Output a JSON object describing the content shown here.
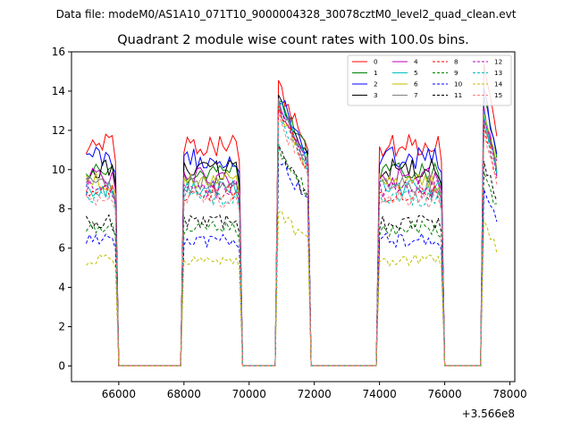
{
  "chart_data": {
    "type": "line",
    "suptitle": "Data file: modeM0/AS1A10_071T10_9000004328_30078cztM0_level2_quad_clean.evt",
    "title": "Quadrant 2 module wise count rates with 100.0s bins.",
    "xlabel": "",
    "ylabel": "",
    "x_offset_label": "+3.566e8",
    "xlim": [
      64550,
      78150
    ],
    "ylim": [
      -0.8,
      16
    ],
    "xticks": [
      66000,
      68000,
      70000,
      72000,
      74000,
      76000,
      78000
    ],
    "xtick_labels": [
      "66000",
      "68000",
      "70000",
      "72000",
      "74000",
      "76000",
      "78000"
    ],
    "yticks": [
      0,
      2,
      4,
      6,
      8,
      10,
      12,
      14,
      16
    ],
    "ytick_labels": [
      "0",
      "2",
      "4",
      "6",
      "8",
      "10",
      "12",
      "14",
      "16"
    ],
    "grid": false,
    "legend_position": "top-right",
    "segments": [
      [
        65000,
        65900
      ],
      [
        68000,
        69700
      ],
      [
        70900,
        71800
      ],
      [
        74000,
        75900
      ],
      [
        77200,
        77600
      ]
    ],
    "series": [
      {
        "name": "0",
        "color": "#ff0000",
        "dash": "solid",
        "level": 11.2,
        "peaks": [
          14.2,
          15.2
        ]
      },
      {
        "name": "1",
        "color": "#008000",
        "dash": "solid",
        "level": 9.8,
        "peaks": [
          13.8,
          13.5
        ]
      },
      {
        "name": "2",
        "color": "#0000ff",
        "dash": "solid",
        "level": 10.6,
        "peaks": [
          13.8,
          13.9
        ]
      },
      {
        "name": "3",
        "color": "#000000",
        "dash": "solid",
        "level": 10.0,
        "peaks": [
          13.6,
          12.6
        ]
      },
      {
        "name": "4",
        "color": "#bf00bf",
        "dash": "solid",
        "level": 9.6,
        "peaks": [
          13.5,
          13.0
        ]
      },
      {
        "name": "5",
        "color": "#00bfbf",
        "dash": "solid",
        "level": 9.0,
        "peaks": [
          13.4,
          12.8
        ]
      },
      {
        "name": "6",
        "color": "#bfbf00",
        "dash": "solid",
        "level": 9.4,
        "peaks": [
          13.0,
          12.9
        ]
      },
      {
        "name": "7",
        "color": "#808080",
        "dash": "solid",
        "level": 9.2,
        "peaks": [
          13.3,
          12.7
        ]
      },
      {
        "name": "8",
        "color": "#ff0000",
        "dash": "dashed",
        "level": 8.8,
        "peaks": [
          12.9,
          12.2
        ]
      },
      {
        "name": "9",
        "color": "#008000",
        "dash": "dashed",
        "level": 7.0,
        "peaks": [
          11.2,
          10.1
        ]
      },
      {
        "name": "10",
        "color": "#0000ff",
        "dash": "dashed",
        "level": 6.4,
        "peaks": [
          10.6,
          9.2
        ]
      },
      {
        "name": "11",
        "color": "#000000",
        "dash": "dashed",
        "level": 7.3,
        "peaks": [
          11.0,
          10.6
        ]
      },
      {
        "name": "12",
        "color": "#bf00bf",
        "dash": "dashed",
        "level": 9.0,
        "peaks": [
          13.1,
          12.8
        ]
      },
      {
        "name": "13",
        "color": "#00bfbf",
        "dash": "dashed",
        "level": 8.6,
        "peaks": [
          12.6,
          12.4
        ]
      },
      {
        "name": "14",
        "color": "#bfbf00",
        "dash": "dashed",
        "level": 5.4,
        "peaks": [
          8.0,
          7.6
        ]
      },
      {
        "name": "15",
        "color": "#ff7f7f",
        "dash": "dashed",
        "level": 8.5,
        "peaks": [
          12.5,
          12.0
        ]
      }
    ]
  }
}
